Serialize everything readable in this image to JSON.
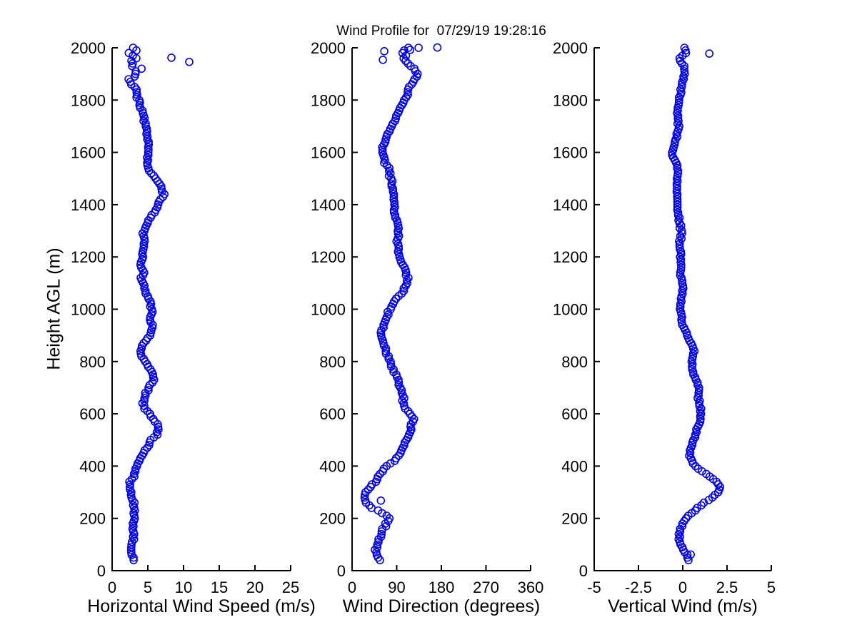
{
  "title": "Wind Profile for  07/29/19 19:28:16",
  "ylabel": "Height AGL (m)",
  "ylim": [
    0,
    2000
  ],
  "yticks": [
    0,
    200,
    400,
    600,
    800,
    1000,
    1200,
    1400,
    1600,
    1800,
    2000
  ],
  "marker": {
    "shape": "open-circle",
    "color": "#0000EE",
    "radius": 5,
    "stroke_width": 1.6
  },
  "axis_color": "#000000",
  "background": "#ffffff",
  "seed": 42,
  "sample": {
    "h_min": 40,
    "h_max": 2000,
    "step_m": 10
  },
  "chart_data": [
    {
      "type": "scatter",
      "id": "horizontal-wind-speed",
      "xlabel": "Horizontal Wind Speed (m/s)",
      "ylabel": "Height AGL (m)",
      "xlim": [
        0,
        25
      ],
      "xticks": [
        0,
        5,
        10,
        15,
        20,
        25
      ],
      "grid": false,
      "heights_m": {
        "start": 40,
        "step": 20,
        "count": 99
      },
      "values": [
        3.0,
        2.8,
        2.6,
        2.7,
        3.0,
        3.1,
        3.0,
        3.0,
        3.1,
        3.2,
        3.1,
        3.0,
        2.8,
        2.6,
        2.4,
        2.6,
        3.0,
        3.2,
        3.4,
        3.7,
        4.2,
        4.6,
        5.0,
        5.5,
        6.2,
        6.5,
        6.3,
        5.8,
        5.2,
        4.6,
        4.3,
        4.5,
        4.8,
        5.2,
        5.6,
        5.9,
        5.6,
        5.1,
        4.6,
        4.2,
        4.0,
        4.3,
        4.8,
        5.2,
        5.5,
        5.6,
        5.3,
        5.4,
        5.6,
        5.4,
        5.0,
        4.7,
        4.5,
        4.3,
        4.2,
        4.3,
        4.2,
        4.1,
        4.2,
        4.3,
        4.5,
        4.6,
        4.4,
        4.5,
        4.8,
        5.2,
        5.6,
        6.0,
        6.5,
        6.9,
        7.2,
        7.0,
        6.6,
        6.0,
        5.4,
        5.0,
        4.8,
        4.9,
        5.0,
        5.1,
        5.0,
        4.9,
        4.8,
        4.7,
        4.5,
        4.4,
        4.2,
        4.0,
        3.7,
        3.5,
        3.3,
        2.9,
        2.7,
        3.2,
        3.6,
        3.4,
        2.9,
        2.6,
        3.3
      ],
      "outliers": [
        [
          8.3,
          1962
        ],
        [
          10.8,
          1946
        ]
      ],
      "jitter": {
        "base": 0.22,
        "top_above": 1860,
        "top": 0.85
      }
    },
    {
      "type": "scatter",
      "id": "wind-direction",
      "xlabel": "Wind Direction (degrees)",
      "ylabel": "Height AGL (m)",
      "xlim": [
        0,
        360
      ],
      "xticks": [
        0,
        90,
        180,
        270,
        360
      ],
      "grid": false,
      "heights_m": {
        "start": 40,
        "step": 20,
        "count": 99
      },
      "values": [
        55,
        50,
        47,
        50,
        55,
        60,
        62,
        70,
        78,
        60,
        40,
        30,
        26,
        28,
        35,
        45,
        55,
        62,
        70,
        85,
        95,
        100,
        105,
        110,
        115,
        118,
        120,
        124,
        115,
        108,
        105,
        103,
        100,
        98,
        95,
        90,
        85,
        80,
        76,
        72,
        68,
        64,
        60,
        58,
        60,
        64,
        68,
        72,
        76,
        82,
        90,
        98,
        105,
        110,
        112,
        110,
        105,
        100,
        96,
        94,
        92,
        92,
        93,
        94,
        92,
        90,
        88,
        86,
        85,
        84,
        83,
        82,
        80,
        78,
        76,
        72,
        68,
        64,
        60,
        62,
        66,
        70,
        75,
        80,
        85,
        90,
        95,
        100,
        105,
        110,
        113,
        120,
        128,
        133,
        125,
        112,
        105,
        102,
        110
      ],
      "outliers": [
        [
          65,
          1987
        ],
        [
          62,
          1954
        ],
        [
          117,
          1992
        ],
        [
          134,
          2000
        ],
        [
          172,
          2001
        ],
        [
          58,
          268
        ]
      ],
      "jitter": {
        "base": 3.5,
        "top_above": 1950,
        "top": 9
      }
    },
    {
      "type": "scatter",
      "id": "vertical-wind",
      "xlabel": "Vertical Wind (m/s)",
      "ylabel": "Height AGL (m)",
      "xlim": [
        -5,
        5
      ],
      "xticks": [
        -5,
        -2.5,
        0,
        2.5,
        5
      ],
      "grid": false,
      "heights_m": {
        "start": 40,
        "step": 20,
        "count": 99
      },
      "values": [
        0.3,
        0.2,
        0.0,
        -0.1,
        -0.2,
        -0.2,
        -0.1,
        0.0,
        0.2,
        0.5,
        0.8,
        1.2,
        1.7,
        2.0,
        2.1,
        1.9,
        1.5,
        1.1,
        0.7,
        0.5,
        0.4,
        0.4,
        0.5,
        0.6,
        0.7,
        0.8,
        0.9,
        1.0,
        1.0,
        1.0,
        0.95,
        0.9,
        0.9,
        0.9,
        0.8,
        0.7,
        0.6,
        0.5,
        0.5,
        0.55,
        0.6,
        0.55,
        0.4,
        0.25,
        0.1,
        0.0,
        -0.05,
        -0.1,
        -0.1,
        -0.1,
        -0.1,
        -0.05,
        0.0,
        -0.05,
        -0.1,
        -0.15,
        -0.1,
        -0.1,
        -0.1,
        -0.15,
        -0.2,
        -0.15,
        -0.1,
        -0.1,
        -0.15,
        -0.2,
        -0.25,
        -0.3,
        -0.3,
        -0.3,
        -0.3,
        -0.35,
        -0.35,
        -0.3,
        -0.25,
        -0.3,
        -0.4,
        -0.5,
        -0.6,
        -0.55,
        -0.45,
        -0.35,
        -0.3,
        -0.25,
        -0.25,
        -0.3,
        -0.3,
        -0.25,
        -0.2,
        -0.15,
        -0.1,
        -0.05,
        0.0,
        0.1,
        0.1,
        0.0,
        -0.1,
        0.2,
        0.3
      ],
      "outliers": [
        [
          1.5,
          1978
        ],
        [
          0.45,
          62
        ]
      ],
      "jitter": {
        "base": 0.07,
        "top_above": 1935,
        "top": 0.3
      }
    }
  ]
}
